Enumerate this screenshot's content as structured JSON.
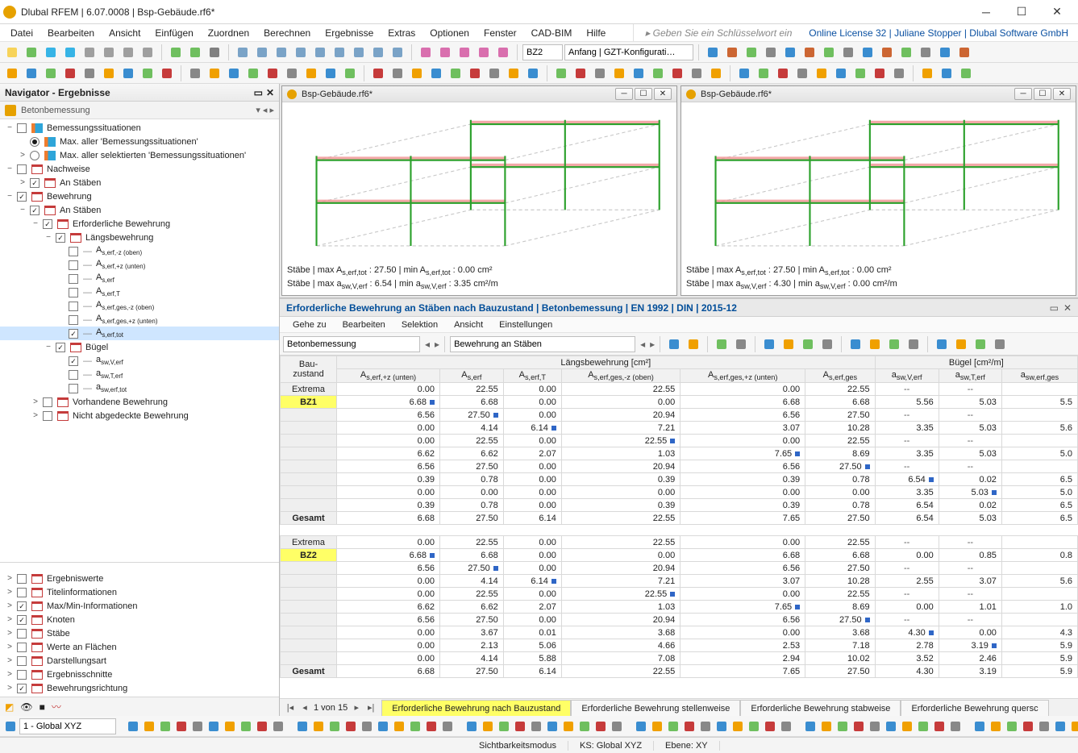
{
  "title": "Dlubal RFEM | 6.07.0008 | Bsp-Gebäude.rf6*",
  "menubar": [
    "Datei",
    "Bearbeiten",
    "Ansicht",
    "Einfügen",
    "Zuordnen",
    "Berechnen",
    "Ergebnisse",
    "Extras",
    "Optionen",
    "Fenster",
    "CAD-BIM",
    "Hilfe"
  ],
  "menubar_search_placeholder": "Geben Sie ein Schlüsselwort ein (Alt…)",
  "menubar_right": "Online License 32 | Juliane Stopper | Dlubal Software GmbH",
  "toolbar1_combo_bz": "BZ2",
  "toolbar1_combo_cfg": "Anfang | GZT-Konfigurati…",
  "nav_header": "Navigator - Ergebnisse",
  "nav_sub": "Betonbemessung",
  "tree": [
    {
      "d": 0,
      "exp": "−",
      "cb": false,
      "ic": "rpt",
      "lbl": "Bemessungssituationen"
    },
    {
      "d": 1,
      "exp": "",
      "radio": true,
      "on": true,
      "ic": "rpt",
      "lbl": "Max. aller 'Bemessungssituationen'"
    },
    {
      "d": 1,
      "exp": ">",
      "radio": true,
      "on": false,
      "ic": "rpt",
      "lbl": "Max. aller selektierten 'Bemessungssituationen'"
    },
    {
      "d": 0,
      "exp": "−",
      "cb": false,
      "ic": "bar",
      "lbl": "Nachweise"
    },
    {
      "d": 1,
      "exp": ">",
      "cb": true,
      "ic": "bar",
      "lbl": "An Stäben"
    },
    {
      "d": 0,
      "exp": "−",
      "cb": true,
      "ic": "bar",
      "lbl": "Bewehrung"
    },
    {
      "d": 1,
      "exp": "−",
      "cb": true,
      "ic": "bar",
      "lbl": "An Stäben"
    },
    {
      "d": 2,
      "exp": "−",
      "cb": true,
      "ic": "bar",
      "lbl": "Erforderliche Bewehrung"
    },
    {
      "d": 3,
      "exp": "−",
      "cb": true,
      "ic": "bar",
      "lbl": "Längsbewehrung"
    },
    {
      "d": 4,
      "exp": "",
      "cb": false,
      "ic": "",
      "lbl": "A<sub>s,erf,-z (oben)</sub>"
    },
    {
      "d": 4,
      "exp": "",
      "cb": false,
      "ic": "",
      "lbl": "A<sub>s,erf,+z (unten)</sub>"
    },
    {
      "d": 4,
      "exp": "",
      "cb": false,
      "ic": "",
      "lbl": "A<sub>s,erf</sub>"
    },
    {
      "d": 4,
      "exp": "",
      "cb": false,
      "ic": "",
      "lbl": "A<sub>s,erf,T</sub>"
    },
    {
      "d": 4,
      "exp": "",
      "cb": false,
      "ic": "",
      "lbl": "A<sub>s,erf,ges,-z (oben)</sub>"
    },
    {
      "d": 4,
      "exp": "",
      "cb": false,
      "ic": "",
      "lbl": "A<sub>s,erf,ges,+z (unten)</sub>"
    },
    {
      "d": 4,
      "exp": "",
      "cb": true,
      "ic": "",
      "lbl": "A<sub>s,erf,tot</sub>",
      "sel": true
    },
    {
      "d": 3,
      "exp": "−",
      "cb": true,
      "ic": "bar",
      "lbl": "Bügel"
    },
    {
      "d": 4,
      "exp": "",
      "cb": true,
      "ic": "",
      "lbl": "a<sub>sw,V,erf</sub>"
    },
    {
      "d": 4,
      "exp": "",
      "cb": false,
      "ic": "",
      "lbl": "a<sub>sw,T,erf</sub>"
    },
    {
      "d": 4,
      "exp": "",
      "cb": false,
      "ic": "",
      "lbl": "a<sub>sw,erf,tot</sub>"
    },
    {
      "d": 2,
      "exp": ">",
      "cb": false,
      "ic": "bar",
      "lbl": "Vorhandene Bewehrung"
    },
    {
      "d": 2,
      "exp": ">",
      "cb": false,
      "ic": "bar",
      "lbl": "Nicht abgedeckte Bewehrung"
    }
  ],
  "tree_display": [
    {
      "cb": false,
      "lbl": "Ergebniswerte"
    },
    {
      "cb": false,
      "lbl": "Titelinformationen"
    },
    {
      "cb": true,
      "lbl": "Max/Min-Informationen"
    },
    {
      "cb": true,
      "lbl": "Knoten"
    },
    {
      "cb": false,
      "lbl": "Stäbe"
    },
    {
      "cb": false,
      "lbl": "Werte an Flächen"
    },
    {
      "cb": false,
      "lbl": "Darstellungsart"
    },
    {
      "cb": false,
      "lbl": "Ergebnisschnitte"
    },
    {
      "cb": true,
      "lbl": "Bewehrungsrichtung"
    }
  ],
  "views": [
    {
      "doc": "Bsp-Gebäude.rf6*",
      "caption": [
        "Stäbe | max A<sub>s,erf,tot</sub> : 27.50 | min A<sub>s,erf,tot</sub> : 0.00 cm²",
        "Stäbe | max a<sub>sw,V,erf</sub> : 6.54 | min a<sub>sw,V,erf</sub> : 3.35 cm²/m"
      ]
    },
    {
      "doc": "Bsp-Gebäude.rf6*",
      "caption": [
        "Stäbe | max A<sub>s,erf,tot</sub> : 27.50 | min A<sub>s,erf,tot</sub> : 0.00 cm²",
        "Stäbe | max a<sub>sw,V,erf</sub> : 4.30 | min a<sub>sw,V,erf</sub> : 0.00 cm²/m"
      ]
    }
  ],
  "table_panel": {
    "title": "Erforderliche Bewehrung an Stäben nach Bauzustand | Betonbemessung | EN 1992 | DIN | 2015-12",
    "menu": [
      "Gehe zu",
      "Bearbeiten",
      "Selektion",
      "Ansicht",
      "Einstellungen"
    ],
    "tool_combo1": "Betonbemessung",
    "tool_combo2": "Bewehrung an Stäben",
    "supercols": [
      "Bau­zustand",
      "Längsbewehrung [cm²]",
      "Bügel [cm²/m]"
    ],
    "cols": [
      "A<sub>s,erf,+z (unten)</sub>",
      "A<sub>s,erf</sub>",
      "A<sub>s,erf,T</sub>",
      "A<sub>s,erf,ges,-z (oben)</sub>",
      "A<sub>s,erf,ges,+z (unten)</sub>",
      "A<sub>s,erf,ges</sub>",
      "a<sub>sw,V,erf</sub>",
      "a<sub>sw,T,erf</sub>",
      "a<sub>sw,erf,ges</sub>"
    ],
    "blocks": [
      {
        "label": "Extrema",
        "bzlabel": "BZ1",
        "rows": [
          [
            "0.00",
            "22.55",
            "0.00",
            "22.55",
            "0.00",
            "22.55",
            "--",
            "--",
            ""
          ],
          [
            "6.68 ▮",
            "6.68",
            "0.00",
            "0.00",
            "6.68",
            "6.68",
            "5.56",
            "5.03",
            "5.5"
          ],
          [
            "6.56",
            "27.50 ▮",
            "0.00",
            "20.94",
            "6.56",
            "27.50",
            "--",
            "--",
            ""
          ],
          [
            "0.00",
            "4.14",
            "6.14 ▮",
            "7.21",
            "3.07",
            "10.28",
            "3.35",
            "5.03",
            "5.6"
          ],
          [
            "0.00",
            "22.55",
            "0.00",
            "22.55 ▮",
            "0.00",
            "22.55",
            "--",
            "--",
            ""
          ],
          [
            "6.62",
            "6.62",
            "2.07",
            "1.03",
            "7.65 ▮",
            "8.69",
            "3.35",
            "5.03",
            "5.0"
          ],
          [
            "6.56",
            "27.50",
            "0.00",
            "20.94",
            "6.56",
            "27.50 ▮",
            "--",
            "--",
            ""
          ],
          [
            "0.39",
            "0.78",
            "0.00",
            "0.39",
            "0.39",
            "0.78",
            "6.54 ▮",
            "0.02",
            "6.5"
          ],
          [
            "0.00",
            "0.00",
            "0.00",
            "0.00",
            "0.00",
            "0.00",
            "3.35",
            "5.03 ▮",
            "5.0"
          ],
          [
            "0.39",
            "0.78",
            "0.00",
            "0.39",
            "0.39",
            "0.78",
            "6.54",
            "0.02",
            "6.5"
          ]
        ],
        "gesamt": [
          "6.68",
          "27.50",
          "6.14",
          "22.55",
          "7.65",
          "27.50",
          "6.54",
          "5.03",
          "6.5"
        ]
      },
      {
        "label": "Extrema",
        "bzlabel": "BZ2",
        "rows": [
          [
            "0.00",
            "22.55",
            "0.00",
            "22.55",
            "0.00",
            "22.55",
            "--",
            "--",
            ""
          ],
          [
            "6.68 ▮",
            "6.68",
            "0.00",
            "0.00",
            "6.68",
            "6.68",
            "0.00",
            "0.85",
            "0.8"
          ],
          [
            "6.56",
            "27.50 ▮",
            "0.00",
            "20.94",
            "6.56",
            "27.50",
            "--",
            "--",
            ""
          ],
          [
            "0.00",
            "4.14",
            "6.14 ▮",
            "7.21",
            "3.07",
            "10.28",
            "2.55",
            "3.07",
            "5.6"
          ],
          [
            "0.00",
            "22.55",
            "0.00",
            "22.55 ▮",
            "0.00",
            "22.55",
            "--",
            "--",
            ""
          ],
          [
            "6.62",
            "6.62",
            "2.07",
            "1.03",
            "7.65 ▮",
            "8.69",
            "0.00",
            "1.01",
            "1.0"
          ],
          [
            "6.56",
            "27.50",
            "0.00",
            "20.94",
            "6.56",
            "27.50 ▮",
            "--",
            "--",
            ""
          ],
          [
            "0.00",
            "3.67",
            "0.01",
            "3.68",
            "0.00",
            "3.68",
            "4.30 ▮",
            "0.00",
            "4.3"
          ],
          [
            "0.00",
            "2.13",
            "5.06",
            "4.66",
            "2.53",
            "7.18",
            "2.78",
            "3.19 ▮",
            "5.9"
          ],
          [
            "0.00",
            "4.14",
            "5.88",
            "7.08",
            "2.94",
            "10.02",
            "3.52",
            "2.46",
            "5.9"
          ]
        ],
        "gesamt": [
          "6.68",
          "27.50",
          "6.14",
          "22.55",
          "7.65",
          "27.50",
          "4.30",
          "3.19",
          "5.9"
        ]
      }
    ],
    "page_label": "1 von 15",
    "tabs": [
      "Erforderliche Bewehrung nach Bauzustand",
      "Erforderliche Bewehrung stellenweise",
      "Erforderliche Bewehrung stabweise",
      "Erforderliche Bewehrung quersc"
    ]
  },
  "bottom_combo": "1 - Global XYZ",
  "status": {
    "mode": "Sichtbarkeitsmodus",
    "ks": "KS: Global XYZ",
    "ebene": "Ebene: XY"
  },
  "colors": {
    "accent": "#004d99",
    "highlight": "#ffff66",
    "select": "#cfe6ff",
    "beam": "#2aa02a",
    "ribbon": "#f08c8c"
  }
}
